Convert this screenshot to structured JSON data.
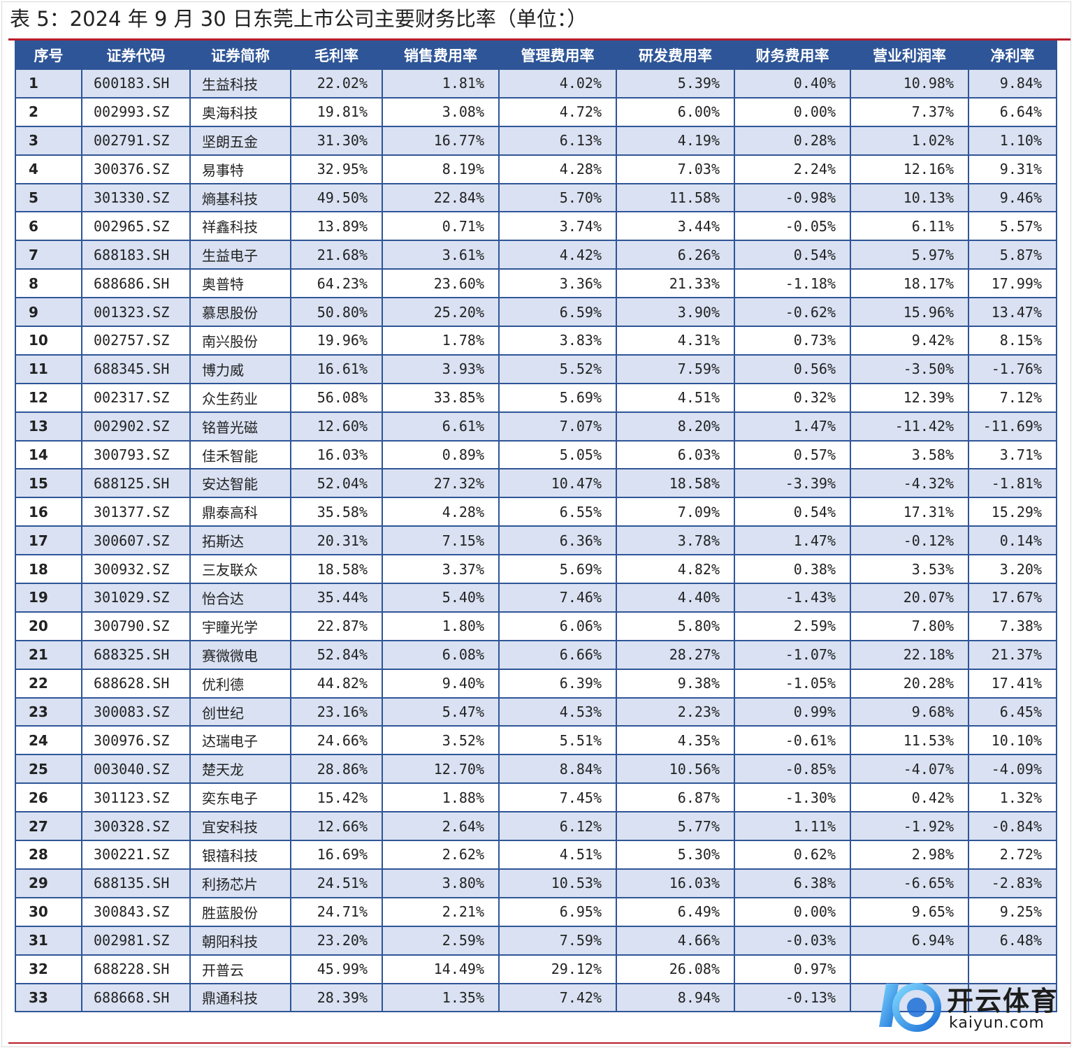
{
  "title": "表 5：2024 年 9 月 30 日东莞上市公司主要财务比率（单位：）",
  "columns": [
    "序号",
    "证券代码",
    "证券简称",
    "毛利率",
    "销售费用率",
    "管理费用率",
    "研发费用率",
    "财务费用率",
    "营业利润率",
    "净利率"
  ],
  "rows": [
    [
      "1",
      "600183.SH",
      "生益科技",
      "22.02%",
      "1.81%",
      "4.02%",
      "5.39%",
      "0.40%",
      "10.98%",
      "9.84%"
    ],
    [
      "2",
      "002993.SZ",
      "奥海科技",
      "19.81%",
      "3.08%",
      "4.72%",
      "6.00%",
      "0.00%",
      "7.37%",
      "6.64%"
    ],
    [
      "3",
      "002791.SZ",
      "坚朗五金",
      "31.30%",
      "16.77%",
      "6.13%",
      "4.19%",
      "0.28%",
      "1.02%",
      "1.10%"
    ],
    [
      "4",
      "300376.SZ",
      "易事特",
      "32.95%",
      "8.19%",
      "4.28%",
      "7.03%",
      "2.24%",
      "12.16%",
      "9.31%"
    ],
    [
      "5",
      "301330.SZ",
      "熵基科技",
      "49.50%",
      "22.84%",
      "5.70%",
      "11.58%",
      "-0.98%",
      "10.13%",
      "9.46%"
    ],
    [
      "6",
      "002965.SZ",
      "祥鑫科技",
      "13.89%",
      "0.71%",
      "3.74%",
      "3.44%",
      "-0.05%",
      "6.11%",
      "5.57%"
    ],
    [
      "7",
      "688183.SH",
      "生益电子",
      "21.68%",
      "3.61%",
      "4.42%",
      "6.26%",
      "0.54%",
      "5.97%",
      "5.87%"
    ],
    [
      "8",
      "688686.SH",
      "奥普特",
      "64.23%",
      "23.60%",
      "3.36%",
      "21.33%",
      "-1.18%",
      "18.17%",
      "17.99%"
    ],
    [
      "9",
      "001323.SZ",
      "慕思股份",
      "50.80%",
      "25.20%",
      "6.59%",
      "3.90%",
      "-0.62%",
      "15.96%",
      "13.47%"
    ],
    [
      "10",
      "002757.SZ",
      "南兴股份",
      "19.96%",
      "1.78%",
      "3.83%",
      "4.31%",
      "0.73%",
      "9.42%",
      "8.15%"
    ],
    [
      "11",
      "688345.SH",
      "博力威",
      "16.61%",
      "3.93%",
      "5.52%",
      "7.59%",
      "0.56%",
      "-3.50%",
      "-1.76%"
    ],
    [
      "12",
      "002317.SZ",
      "众生药业",
      "56.08%",
      "33.85%",
      "5.69%",
      "4.51%",
      "0.32%",
      "12.39%",
      "7.12%"
    ],
    [
      "13",
      "002902.SZ",
      "铭普光磁",
      "12.60%",
      "6.61%",
      "7.07%",
      "8.20%",
      "1.47%",
      "-11.42%",
      "-11.69%"
    ],
    [
      "14",
      "300793.SZ",
      "佳禾智能",
      "16.03%",
      "0.89%",
      "5.05%",
      "6.03%",
      "0.57%",
      "3.58%",
      "3.71%"
    ],
    [
      "15",
      "688125.SH",
      "安达智能",
      "52.04%",
      "27.32%",
      "10.47%",
      "18.58%",
      "-3.39%",
      "-4.32%",
      "-1.81%"
    ],
    [
      "16",
      "301377.SZ",
      "鼎泰高科",
      "35.58%",
      "4.28%",
      "6.55%",
      "7.09%",
      "0.54%",
      "17.31%",
      "15.29%"
    ],
    [
      "17",
      "300607.SZ",
      "拓斯达",
      "20.31%",
      "7.15%",
      "6.36%",
      "3.78%",
      "1.47%",
      "-0.12%",
      "0.14%"
    ],
    [
      "18",
      "300932.SZ",
      "三友联众",
      "18.58%",
      "3.37%",
      "5.69%",
      "4.82%",
      "0.38%",
      "3.53%",
      "3.20%"
    ],
    [
      "19",
      "301029.SZ",
      "怡合达",
      "35.44%",
      "5.40%",
      "7.46%",
      "4.40%",
      "-1.43%",
      "20.07%",
      "17.67%"
    ],
    [
      "20",
      "300790.SZ",
      "宇瞳光学",
      "22.87%",
      "1.80%",
      "6.06%",
      "5.80%",
      "2.59%",
      "7.80%",
      "7.38%"
    ],
    [
      "21",
      "688325.SH",
      "赛微微电",
      "52.84%",
      "6.08%",
      "6.66%",
      "28.27%",
      "-1.07%",
      "22.18%",
      "21.37%"
    ],
    [
      "22",
      "688628.SH",
      "优利德",
      "44.82%",
      "9.40%",
      "6.39%",
      "9.38%",
      "-1.05%",
      "20.28%",
      "17.41%"
    ],
    [
      "23",
      "300083.SZ",
      "创世纪",
      "23.16%",
      "5.47%",
      "4.53%",
      "2.23%",
      "0.99%",
      "9.68%",
      "6.45%"
    ],
    [
      "24",
      "300976.SZ",
      "达瑞电子",
      "24.66%",
      "3.52%",
      "5.51%",
      "4.35%",
      "-0.61%",
      "11.53%",
      "10.10%"
    ],
    [
      "25",
      "003040.SZ",
      "楚天龙",
      "28.86%",
      "12.70%",
      "8.84%",
      "10.56%",
      "-0.85%",
      "-4.07%",
      "-4.09%"
    ],
    [
      "26",
      "301123.SZ",
      "奕东电子",
      "15.42%",
      "1.88%",
      "7.45%",
      "6.87%",
      "-1.30%",
      "0.42%",
      "1.32%"
    ],
    [
      "27",
      "300328.SZ",
      "宜安科技",
      "12.66%",
      "2.64%",
      "6.12%",
      "5.77%",
      "1.11%",
      "-1.92%",
      "-0.84%"
    ],
    [
      "28",
      "300221.SZ",
      "银禧科技",
      "16.69%",
      "2.62%",
      "4.51%",
      "5.30%",
      "0.62%",
      "2.98%",
      "2.72%"
    ],
    [
      "29",
      "688135.SH",
      "利扬芯片",
      "24.51%",
      "3.80%",
      "10.53%",
      "16.03%",
      "6.38%",
      "-6.65%",
      "-2.83%"
    ],
    [
      "30",
      "300843.SZ",
      "胜蓝股份",
      "24.71%",
      "2.21%",
      "6.95%",
      "6.49%",
      "0.00%",
      "9.65%",
      "9.25%"
    ],
    [
      "31",
      "002981.SZ",
      "朝阳科技",
      "23.20%",
      "2.59%",
      "7.59%",
      "4.66%",
      "-0.03%",
      "6.94%",
      "6.48%"
    ],
    [
      "32",
      "688228.SH",
      "开普云",
      "45.99%",
      "14.49%",
      "29.12%",
      "26.08%",
      "0.97%",
      "",
      ""
    ],
    [
      "33",
      "688668.SH",
      "鼎通科技",
      "28.39%",
      "1.35%",
      "7.42%",
      "8.94%",
      "-0.13%",
      "",
      ""
    ]
  ],
  "watermark": {
    "brand": "开云体育",
    "url": "kaiyun.com",
    "logo_letter": "K"
  },
  "colors": {
    "header_bg": "#2e5597",
    "row_alt": "#d9e1f2",
    "rule": "#b91d2b",
    "grid": "#2f5597"
  }
}
